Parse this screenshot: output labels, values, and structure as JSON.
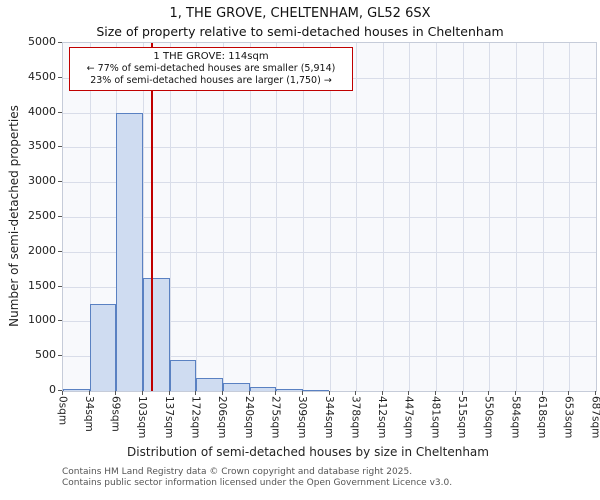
{
  "title": {
    "line1": "1, THE GROVE, CHELTENHAM, GL52 6SX",
    "line2": "Size of property relative to semi-detached houses in Cheltenham"
  },
  "annotation": {
    "line1": "1 THE GROVE: 114sqm",
    "line2": "← 77% of semi-detached houses are smaller (5,914)",
    "line3": "23% of semi-detached houses are larger (1,750) →"
  },
  "footer": {
    "line1": "Contains HM Land Registry data © Crown copyright and database right 2025.",
    "line2": "Contains public sector information licensed under the Open Government Licence v3.0."
  },
  "chart_data": {
    "type": "bar",
    "title": "1, THE GROVE, CHELTENHAM, GL52 6SX — Size of property relative to semi-detached houses in Cheltenham",
    "xlabel": "Distribution of semi-detached houses by size in Cheltenham",
    "ylabel": "Number of semi-detached properties",
    "x_tick_labels": [
      "0sqm",
      "34sqm",
      "69sqm",
      "103sqm",
      "137sqm",
      "172sqm",
      "206sqm",
      "240sqm",
      "275sqm",
      "309sqm",
      "344sqm",
      "378sqm",
      "412sqm",
      "447sqm",
      "481sqm",
      "515sqm",
      "550sqm",
      "584sqm",
      "618sqm",
      "653sqm",
      "687sqm"
    ],
    "bin_edges_sqm": [
      0,
      34,
      69,
      103,
      137,
      172,
      206,
      240,
      275,
      309,
      344,
      378,
      412,
      447,
      481,
      515,
      550,
      584,
      618,
      653,
      687
    ],
    "values": [
      25,
      1250,
      4000,
      1620,
      450,
      190,
      110,
      55,
      35,
      15,
      0,
      0,
      0,
      0,
      0,
      0,
      0,
      0,
      0,
      0
    ],
    "yticks": [
      0,
      500,
      1000,
      1500,
      2000,
      2500,
      3000,
      3500,
      4000,
      4500,
      5000
    ],
    "ylim": [
      0,
      5000
    ],
    "xlim_sqm": [
      0,
      687
    ],
    "marker_value_sqm": 114,
    "marker_label": "1 THE GROVE: 114sqm",
    "smaller_pct": 77,
    "smaller_count": "5,914",
    "larger_pct": 23,
    "larger_count": "1,750",
    "grid": true,
    "legend": false,
    "colors": {
      "bar_fill": "#cfdcf1",
      "bar_border": "#5a81c2",
      "marker": "#c00000",
      "grid": "#d9dde9",
      "plot_bg": "#f8f9fc",
      "spine": "#c6ccd9"
    }
  }
}
